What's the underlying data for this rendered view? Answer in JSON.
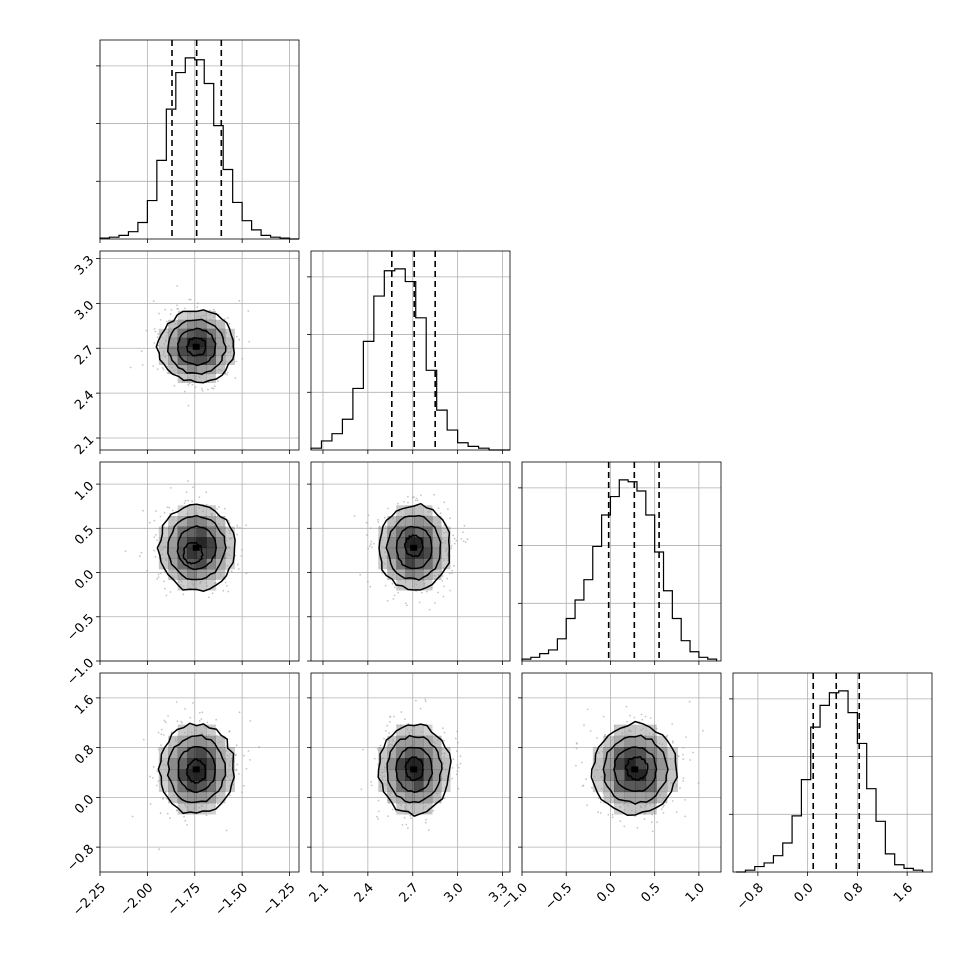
{
  "chart_data": {
    "type": "corner",
    "n_params": 4,
    "grid": true,
    "colors": {
      "line": "#000000",
      "grid": "#b0b0b0",
      "scatter": "#a0a0a0",
      "density": "#000000"
    },
    "params": [
      {
        "index": 0,
        "range": [
          -2.25,
          -1.2
        ],
        "ticks": [
          -2.25,
          -2.0,
          -1.75,
          -1.5,
          -1.25
        ],
        "tick_labels": [
          "−2.25",
          "−2.00",
          "−1.75",
          "−1.50",
          "−1.25"
        ],
        "mean": -1.74,
        "sd": 0.1,
        "quantiles": [
          -1.87,
          -1.74,
          -1.61
        ]
      },
      {
        "index": 1,
        "range": [
          2.02,
          3.35
        ],
        "ticks": [
          2.1,
          2.4,
          2.7,
          3.0,
          3.3
        ],
        "tick_labels": [
          "2.1",
          "2.4",
          "2.7",
          "3.0",
          "3.3"
        ],
        "mean": 2.71,
        "sd": 0.12,
        "quantiles": [
          2.56,
          2.71,
          2.85
        ]
      },
      {
        "index": 2,
        "range": [
          -1.0,
          1.25
        ],
        "ticks": [
          -1.0,
          -0.5,
          0.0,
          0.5,
          1.0
        ],
        "tick_labels": [
          "−1.0",
          "−0.5",
          "0.0",
          "0.5",
          "1.0"
        ],
        "mean": 0.28,
        "sd": 0.24,
        "quantiles": [
          -0.02,
          0.27,
          0.55
        ]
      },
      {
        "index": 3,
        "range": [
          -1.2,
          2.0
        ],
        "ticks": [
          -0.8,
          0.0,
          0.8,
          1.6
        ],
        "tick_labels": [
          "−0.8",
          "0.0",
          "0.8",
          "1.6"
        ],
        "mean": 0.45,
        "sd": 0.36,
        "quantiles": [
          0.09,
          0.46,
          0.83
        ]
      }
    ],
    "histograms": [
      {
        "param": 0,
        "bin_edges": [
          -2.25,
          -2.2,
          -2.15,
          -2.1,
          -2.05,
          -2.0,
          -1.95,
          -1.9,
          -1.85,
          -1.8,
          -1.75,
          -1.7,
          -1.65,
          -1.6,
          -1.55,
          -1.5,
          -1.45,
          -1.4,
          -1.35,
          -1.3,
          -1.25,
          -1.2
        ],
        "counts": [
          0.005,
          0.01,
          0.02,
          0.04,
          0.09,
          0.21,
          0.43,
          0.71,
          0.91,
          0.99,
          0.98,
          0.85,
          0.62,
          0.38,
          0.2,
          0.1,
          0.05,
          0.02,
          0.01,
          0.005,
          0.0
        ]
      },
      {
        "param": 1,
        "bin_edges": [
          2.02,
          2.09,
          2.16,
          2.23,
          2.3,
          2.37,
          2.44,
          2.51,
          2.58,
          2.65,
          2.72,
          2.79,
          2.86,
          2.93,
          3.0,
          3.07,
          3.14,
          3.21,
          3.28,
          3.35
        ],
        "counts": [
          0.01,
          0.05,
          0.09,
          0.17,
          0.34,
          0.6,
          0.85,
          0.99,
          1.0,
          0.93,
          0.73,
          0.44,
          0.22,
          0.11,
          0.04,
          0.02,
          0.01,
          0.0,
          0.0
        ]
      },
      {
        "param": 2,
        "bin_edges": [
          -1.0,
          -0.9,
          -0.8,
          -0.7,
          -0.6,
          -0.5,
          -0.4,
          -0.3,
          -0.2,
          -0.1,
          0.0,
          0.1,
          0.2,
          0.3,
          0.4,
          0.5,
          0.6,
          0.7,
          0.8,
          0.9,
          1.0,
          1.1,
          1.2
        ],
        "counts": [
          0.01,
          0.02,
          0.04,
          0.06,
          0.12,
          0.23,
          0.33,
          0.44,
          0.62,
          0.79,
          0.89,
          0.98,
          0.97,
          0.92,
          0.79,
          0.59,
          0.38,
          0.23,
          0.11,
          0.05,
          0.02,
          0.01
        ]
      },
      {
        "param": 3,
        "bin_edges": [
          -1.15,
          -1.0,
          -0.85,
          -0.7,
          -0.55,
          -0.4,
          -0.25,
          -0.1,
          0.05,
          0.2,
          0.35,
          0.5,
          0.65,
          0.8,
          0.95,
          1.1,
          1.25,
          1.4,
          1.55,
          1.7,
          1.85
        ],
        "counts": [
          0.0,
          0.01,
          0.03,
          0.05,
          0.09,
          0.16,
          0.31,
          0.51,
          0.8,
          0.92,
          0.99,
          1.0,
          0.88,
          0.71,
          0.46,
          0.28,
          0.1,
          0.04,
          0.02,
          0.01
        ]
      }
    ],
    "pairs": [
      {
        "x": 0,
        "y": 1,
        "center": [
          -1.74,
          2.71
        ],
        "inner_mode": [
          -1.74,
          2.71
        ]
      },
      {
        "x": 0,
        "y": 2,
        "center": [
          -1.74,
          0.28
        ],
        "inner_mode": [
          -1.76,
          0.22
        ]
      },
      {
        "x": 1,
        "y": 2,
        "center": [
          2.71,
          0.28
        ],
        "inner_mode": [
          2.71,
          0.3
        ]
      },
      {
        "x": 0,
        "y": 3,
        "center": [
          -1.74,
          0.45
        ],
        "inner_mode": [
          -1.74,
          0.42
        ]
      },
      {
        "x": 1,
        "y": 3,
        "center": [
          2.71,
          0.45
        ],
        "inner_mode": [
          2.71,
          0.46
        ]
      },
      {
        "x": 2,
        "y": 3,
        "center": [
          0.28,
          0.45
        ],
        "inner_mode": [
          0.3,
          0.47
        ]
      }
    ],
    "contour_levels_sigma": [
      0.5,
      1.0,
      1.5,
      2.0
    ]
  }
}
